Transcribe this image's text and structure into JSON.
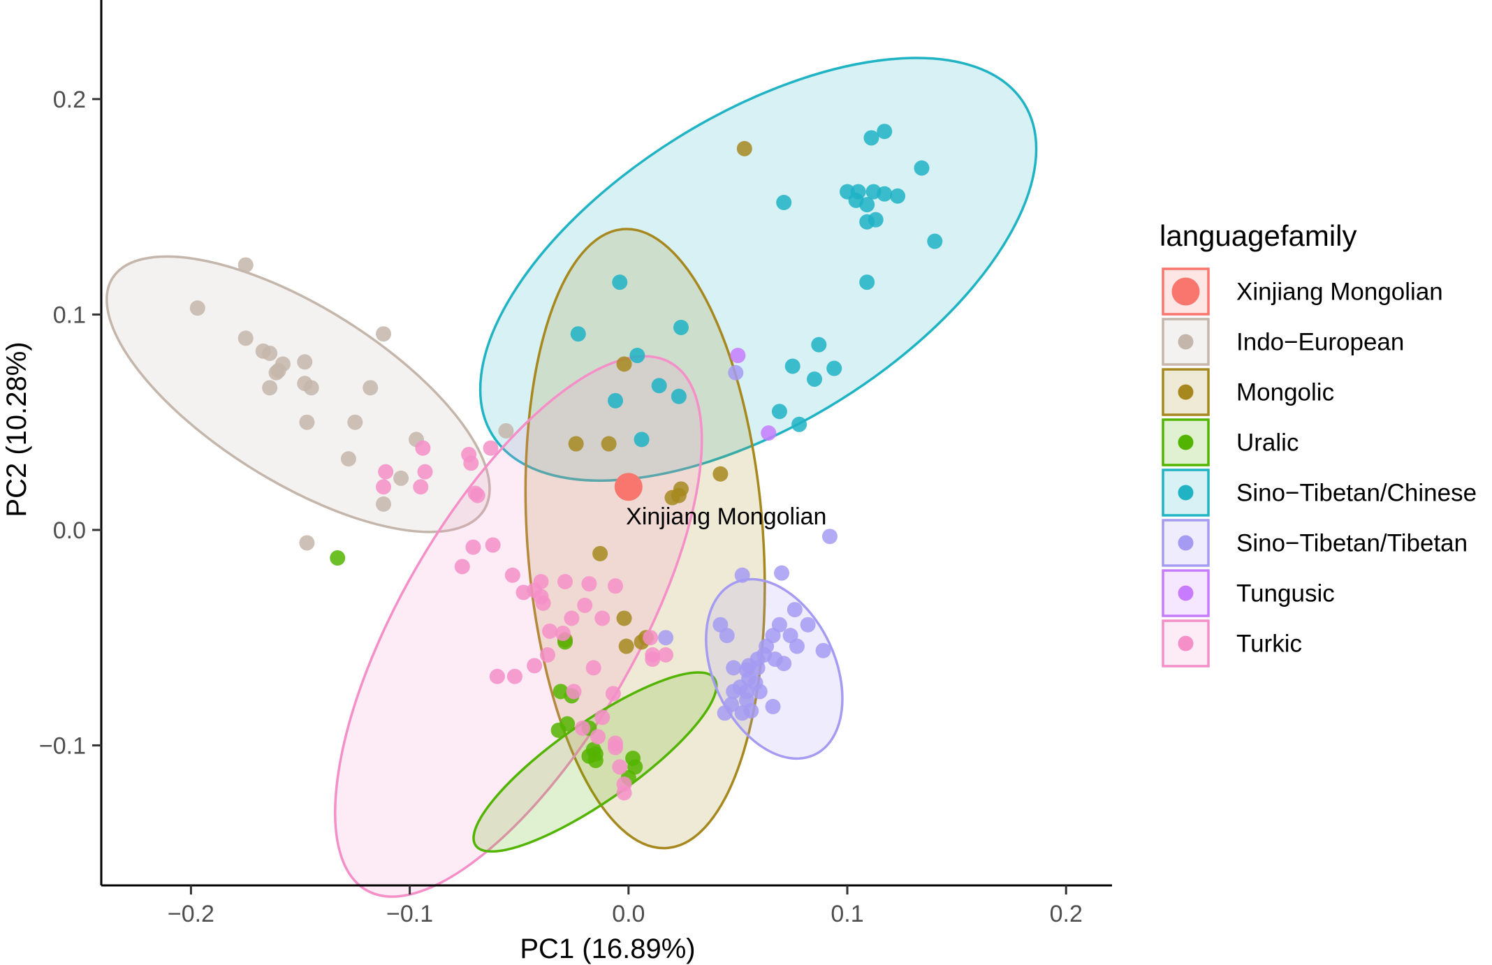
{
  "chart_data": {
    "type": "scatter",
    "xlabel": "PC1 (16.89%)",
    "ylabel": "PC2 (10.28%)",
    "xlim": [
      -0.241,
      0.221
    ],
    "ylim": [
      -0.165,
      0.246
    ],
    "x_ticks": [
      -0.2,
      -0.1,
      0.0,
      0.1,
      0.2
    ],
    "x_tick_labels": [
      "−0.2",
      "−0.1",
      "0.0",
      "0.1",
      "0.2"
    ],
    "y_ticks": [
      -0.1,
      0.0,
      0.1,
      0.2
    ],
    "y_tick_labels": [
      "−0.1",
      "0.0",
      "0.1",
      "0.2"
    ],
    "grid": false,
    "legend": {
      "title": "languagefamily",
      "position": "right",
      "entries": [
        "Xinjiang Mongolian",
        "Indo−European",
        "Mongolic",
        "Uralic",
        "Sino−Tibetan/Chinese",
        "Sino−Tibetan/Tibetan",
        "Tungusic",
        "Turkic"
      ]
    },
    "annotation": {
      "text": "Xinjiang Mongolian",
      "x": 0.0,
      "y": 0.0065
    },
    "series": [
      {
        "name": "Xinjiang Mongolian",
        "color": "#F8766D",
        "highlight": true,
        "points": [
          [
            0.0,
            0.02
          ]
        ]
      },
      {
        "name": "Indo−European",
        "color": "#C4B6AA",
        "points": [
          [
            -0.175,
            0.123
          ],
          [
            -0.197,
            0.103
          ],
          [
            -0.175,
            0.089
          ],
          [
            -0.167,
            0.083
          ],
          [
            -0.164,
            0.082
          ],
          [
            -0.158,
            0.077
          ],
          [
            -0.16,
            0.074
          ],
          [
            -0.148,
            0.078
          ],
          [
            -0.164,
            0.066
          ],
          [
            -0.148,
            0.068
          ],
          [
            -0.145,
            0.066
          ],
          [
            -0.112,
            0.091
          ],
          [
            -0.118,
            0.066
          ],
          [
            -0.161,
            0.073
          ],
          [
            -0.147,
            0.05
          ],
          [
            -0.125,
            0.05
          ],
          [
            -0.128,
            0.033
          ],
          [
            -0.097,
            0.042
          ],
          [
            -0.104,
            0.024
          ],
          [
            -0.112,
            0.012
          ],
          [
            -0.056,
            0.046
          ],
          [
            -0.147,
            -0.006
          ]
        ]
      },
      {
        "name": "Mongolic",
        "color": "#A6881E",
        "points": [
          [
            0.053,
            0.177
          ],
          [
            -0.002,
            0.077
          ],
          [
            -0.024,
            0.04
          ],
          [
            -0.009,
            0.04
          ],
          [
            0.042,
            0.026
          ],
          [
            0.024,
            0.019
          ],
          [
            0.023,
            0.016
          ],
          [
            0.02,
            0.015
          ],
          [
            -0.013,
            -0.011
          ],
          [
            -0.002,
            -0.041
          ],
          [
            0.008,
            -0.05
          ],
          [
            0.006,
            -0.052
          ],
          [
            -0.001,
            -0.054
          ],
          [
            -0.029,
            -0.051
          ]
        ]
      },
      {
        "name": "Uralic",
        "color": "#53B400",
        "points": [
          [
            -0.133,
            -0.013
          ],
          [
            -0.029,
            -0.052
          ],
          [
            -0.031,
            -0.075
          ],
          [
            -0.026,
            -0.077
          ],
          [
            -0.018,
            -0.092
          ],
          [
            -0.032,
            -0.093
          ],
          [
            -0.028,
            -0.09
          ],
          [
            -0.016,
            -0.102
          ],
          [
            -0.018,
            -0.105
          ],
          [
            -0.015,
            -0.107
          ],
          [
            0.002,
            -0.106
          ],
          [
            0.003,
            -0.11
          ],
          [
            0.0,
            -0.115
          ],
          [
            -0.015,
            -0.104
          ]
        ]
      },
      {
        "name": "Sino−Tibetan/Chinese",
        "color": "#1FB3C4",
        "points": [
          [
            0.117,
            0.185
          ],
          [
            0.111,
            0.182
          ],
          [
            0.134,
            0.168
          ],
          [
            0.071,
            0.152
          ],
          [
            0.1,
            0.157
          ],
          [
            0.105,
            0.157
          ],
          [
            0.104,
            0.153
          ],
          [
            0.112,
            0.157
          ],
          [
            0.117,
            0.156
          ],
          [
            0.123,
            0.155
          ],
          [
            0.109,
            0.151
          ],
          [
            0.113,
            0.144
          ],
          [
            0.109,
            0.143
          ],
          [
            0.14,
            0.134
          ],
          [
            0.109,
            0.115
          ],
          [
            -0.004,
            0.115
          ],
          [
            -0.023,
            0.091
          ],
          [
            0.024,
            0.094
          ],
          [
            0.004,
            0.081
          ],
          [
            0.087,
            0.086
          ],
          [
            0.075,
            0.076
          ],
          [
            0.094,
            0.075
          ],
          [
            0.085,
            0.07
          ],
          [
            0.014,
            0.067
          ],
          [
            0.023,
            0.062
          ],
          [
            -0.006,
            0.06
          ],
          [
            0.069,
            0.055
          ],
          [
            0.078,
            0.049
          ],
          [
            0.006,
            0.042
          ]
        ]
      },
      {
        "name": "Sino−Tibetan/Tibetan",
        "color": "#A59BF2",
        "points": [
          [
            0.092,
            -0.003
          ],
          [
            0.052,
            -0.021
          ],
          [
            0.07,
            -0.02
          ],
          [
            0.076,
            -0.037
          ],
          [
            0.069,
            -0.044
          ],
          [
            0.082,
            -0.044
          ],
          [
            0.042,
            -0.044
          ],
          [
            0.066,
            -0.049
          ],
          [
            0.074,
            -0.049
          ],
          [
            0.045,
            -0.049
          ],
          [
            0.063,
            -0.054
          ],
          [
            0.077,
            -0.054
          ],
          [
            0.089,
            -0.056
          ],
          [
            0.062,
            -0.058
          ],
          [
            0.059,
            -0.06
          ],
          [
            0.067,
            -0.06
          ],
          [
            0.055,
            -0.063
          ],
          [
            0.059,
            -0.064
          ],
          [
            0.071,
            -0.062
          ],
          [
            0.054,
            -0.065
          ],
          [
            0.048,
            -0.064
          ],
          [
            0.055,
            -0.069
          ],
          [
            0.058,
            -0.071
          ],
          [
            0.051,
            -0.073
          ],
          [
            0.048,
            -0.075
          ],
          [
            0.054,
            -0.075
          ],
          [
            0.06,
            -0.075
          ],
          [
            0.054,
            -0.079
          ],
          [
            0.047,
            -0.081
          ],
          [
            0.066,
            -0.082
          ],
          [
            0.052,
            -0.085
          ],
          [
            0.044,
            -0.085
          ],
          [
            0.056,
            -0.084
          ],
          [
            0.049,
            0.073
          ],
          [
            0.017,
            -0.05
          ]
        ]
      },
      {
        "name": "Tungusic",
        "color": "#C77CFF",
        "points": [
          [
            0.05,
            0.081
          ],
          [
            0.064,
            0.045
          ]
        ]
      },
      {
        "name": "Turkic",
        "color": "#F48FC8",
        "points": [
          [
            -0.094,
            0.038
          ],
          [
            -0.073,
            0.035
          ],
          [
            -0.063,
            0.038
          ],
          [
            -0.072,
            0.031
          ],
          [
            -0.093,
            0.027
          ],
          [
            -0.111,
            0.027
          ],
          [
            -0.112,
            0.02
          ],
          [
            -0.095,
            0.02
          ],
          [
            -0.07,
            0.017
          ],
          [
            -0.069,
            0.016
          ],
          [
            -0.071,
            -0.008
          ],
          [
            -0.062,
            -0.007
          ],
          [
            -0.076,
            -0.017
          ],
          [
            -0.053,
            -0.021
          ],
          [
            -0.04,
            -0.024
          ],
          [
            -0.029,
            -0.024
          ],
          [
            -0.048,
            -0.029
          ],
          [
            -0.043,
            -0.028
          ],
          [
            -0.039,
            -0.034
          ],
          [
            -0.04,
            -0.031
          ],
          [
            -0.02,
            -0.035
          ],
          [
            -0.018,
            -0.025
          ],
          [
            -0.006,
            -0.026
          ],
          [
            -0.026,
            -0.041
          ],
          [
            -0.012,
            -0.041
          ],
          [
            -0.036,
            -0.047
          ],
          [
            -0.03,
            -0.048
          ],
          [
            0.01,
            -0.05
          ],
          [
            0.011,
            -0.058
          ],
          [
            0.017,
            -0.058
          ],
          [
            -0.037,
            -0.058
          ],
          [
            -0.016,
            -0.064
          ],
          [
            -0.06,
            -0.068
          ],
          [
            -0.052,
            -0.068
          ],
          [
            -0.043,
            -0.063
          ],
          [
            -0.025,
            -0.075
          ],
          [
            -0.007,
            -0.076
          ],
          [
            -0.012,
            -0.087
          ],
          [
            -0.021,
            -0.092
          ],
          [
            -0.014,
            -0.096
          ],
          [
            -0.006,
            -0.101
          ],
          [
            -0.004,
            -0.11
          ],
          [
            -0.002,
            -0.118
          ],
          [
            -0.006,
            -0.099
          ],
          [
            -0.002,
            -0.122
          ],
          [
            0.011,
            -0.06
          ]
        ]
      }
    ],
    "ellipses": [
      {
        "name": "Indo−European",
        "color": "#C4B6AA",
        "cx": -0.151,
        "cy": 0.063,
        "rx": 0.1001,
        "ry": 0.0406,
        "angle_deg": -32
      },
      {
        "name": "Sino−Tibetan/Chinese",
        "color": "#1FB3C4",
        "cx": 0.0593,
        "cy": 0.121,
        "rx": 0.1432,
        "ry": 0.0716,
        "angle_deg": 32
      },
      {
        "name": "Mongolic",
        "color": "#A6881E",
        "cx": 0.0076,
        "cy": -0.004,
        "rx": 0.0539,
        "ry": 0.144,
        "angle_deg": 4
      },
      {
        "name": "Turkic",
        "color": "#F48FC8",
        "cx": -0.0503,
        "cy": -0.0448,
        "rx": 0.0539,
        "ry": 0.1413,
        "angle_deg": -30
      },
      {
        "name": "Uralic",
        "color": "#53B400",
        "cx": -0.0153,
        "cy": -0.1077,
        "rx": 0.0666,
        "ry": 0.0182,
        "angle_deg": 35
      },
      {
        "name": "Sino−Tibetan/Tibetan",
        "color": "#A59BF2",
        "cx": 0.0666,
        "cy": -0.0645,
        "rx": 0.0278,
        "ry": 0.044,
        "angle_deg": 25
      }
    ],
    "ellipse_order": [
      "Indo−European",
      "Sino−Tibetan/Chinese",
      "Mongolic",
      "Turkic",
      "Uralic",
      "Sino−Tibetan/Tibetan"
    ]
  }
}
